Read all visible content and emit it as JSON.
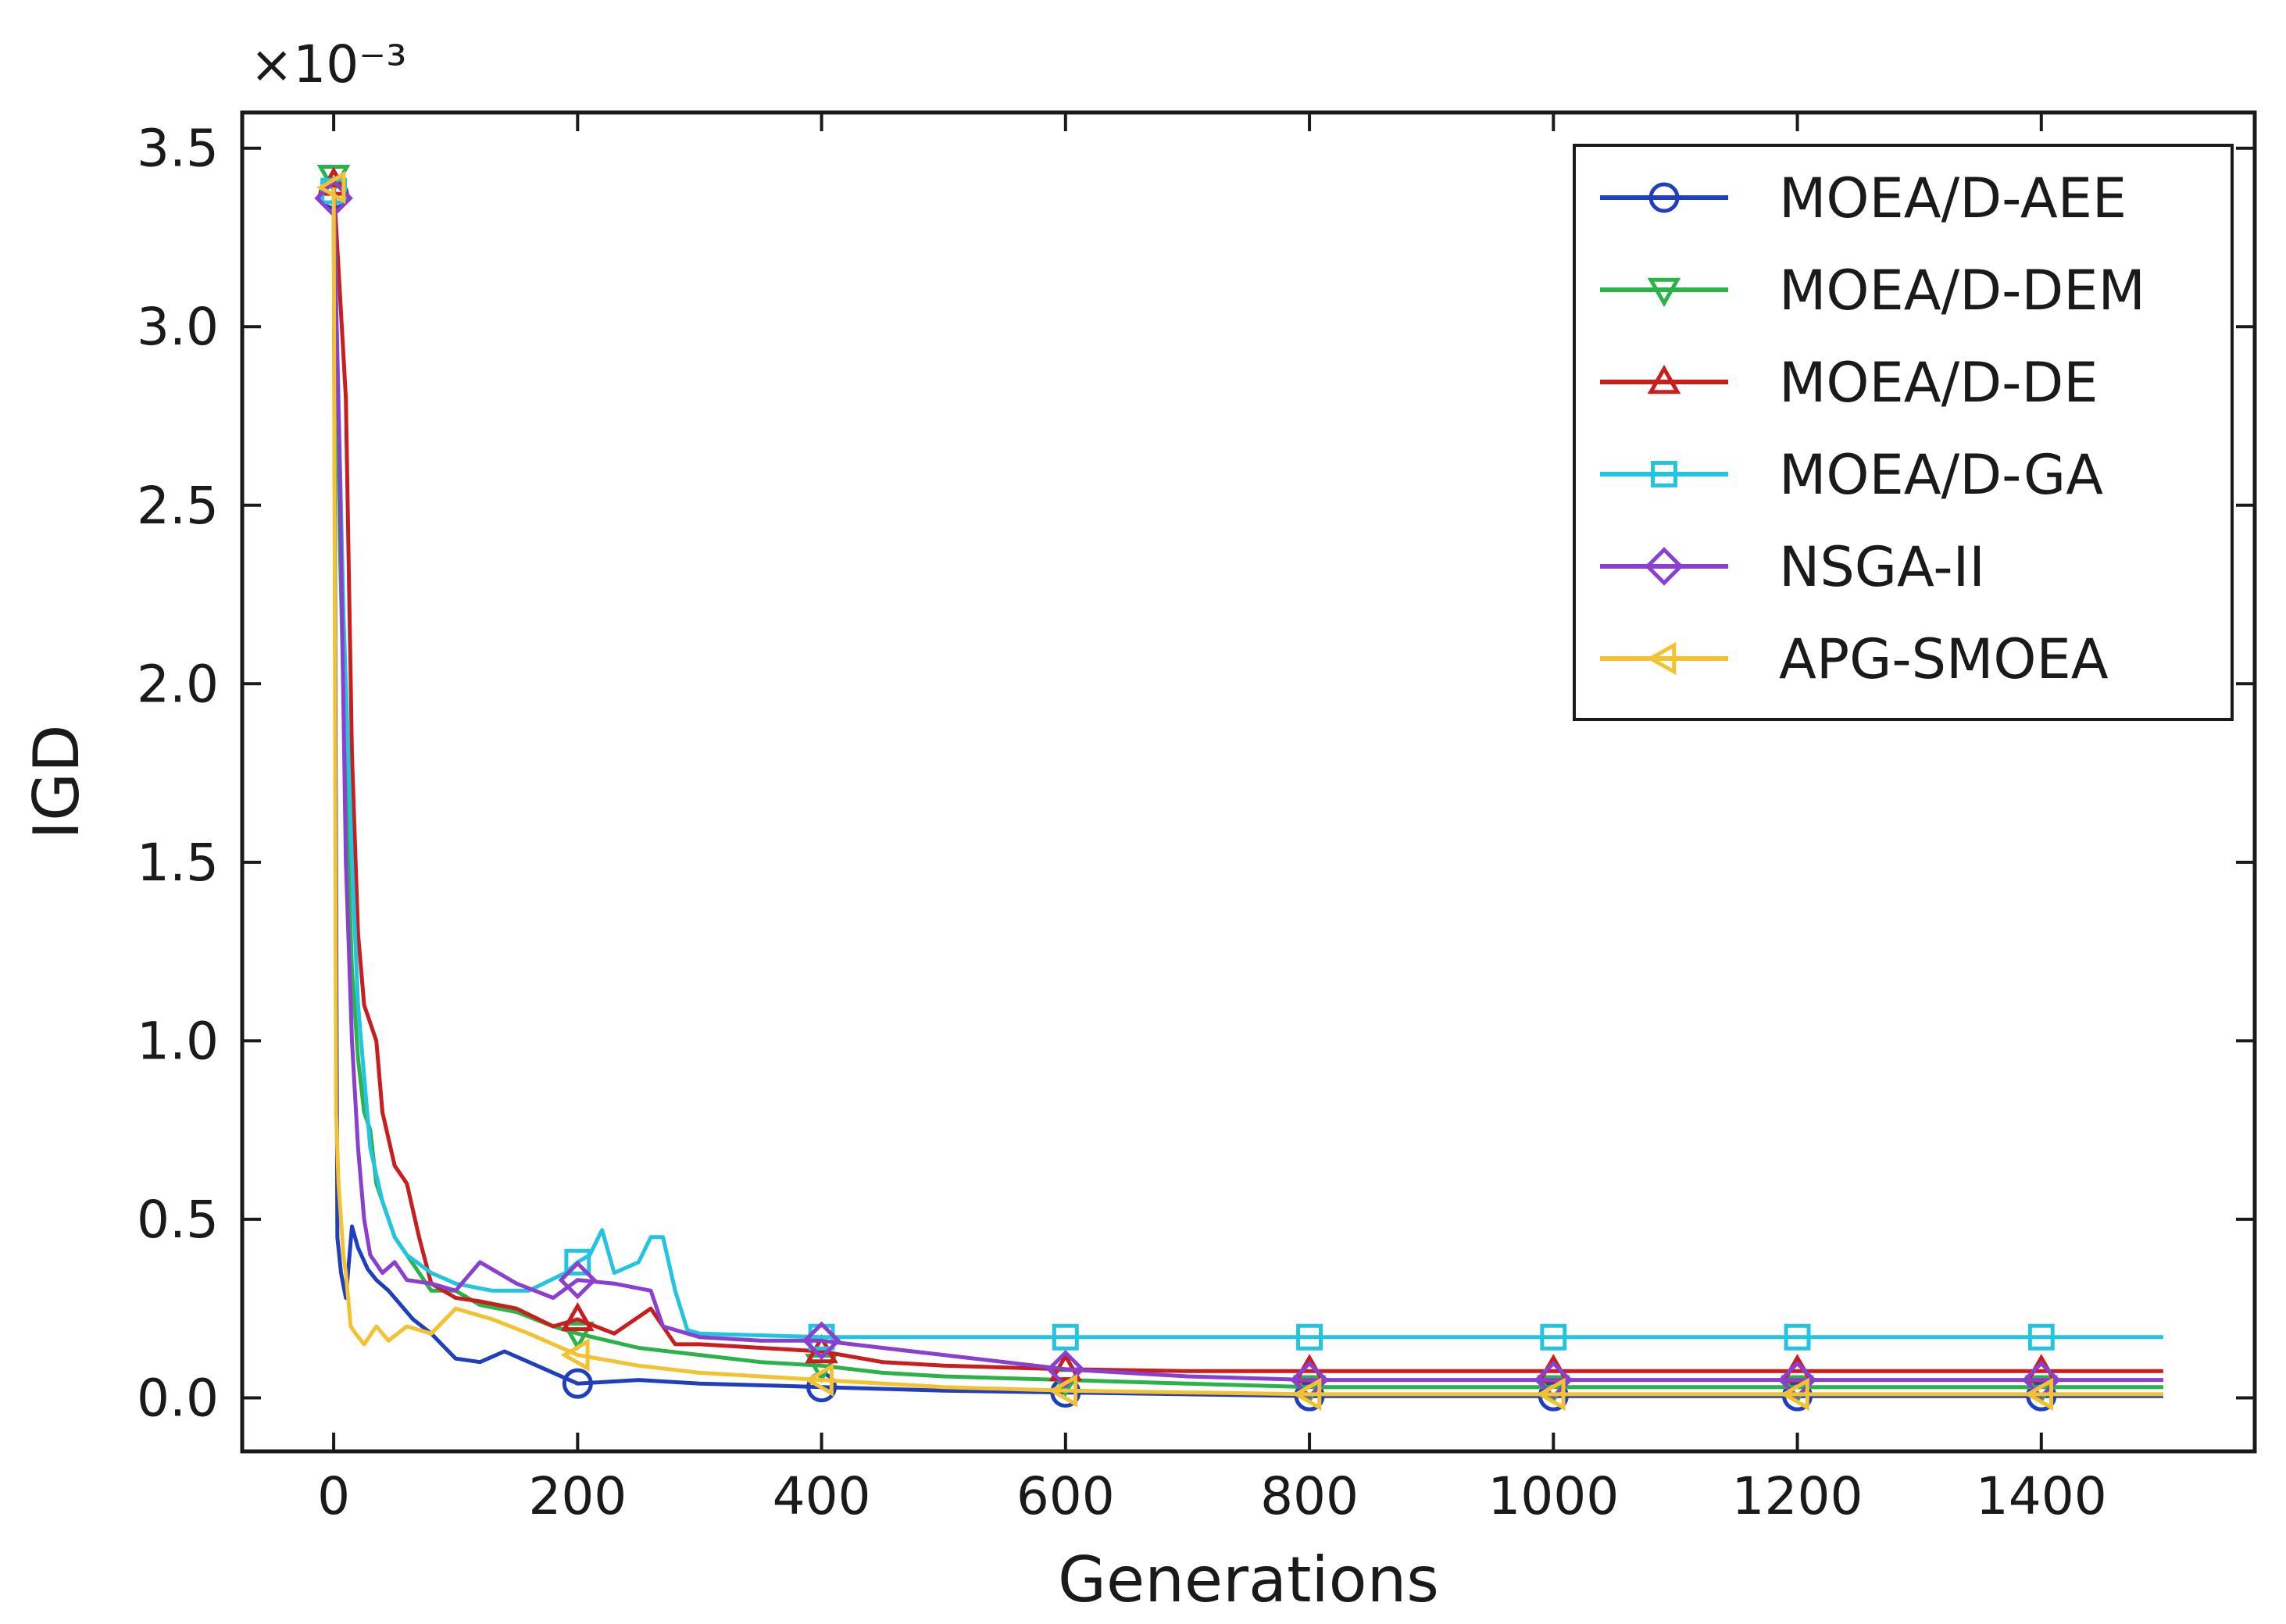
{
  "chart_data": {
    "type": "line",
    "title": "",
    "xlabel": "Generations",
    "ylabel": "IGD",
    "y_scale_label": "×10⁻³",
    "xlim": [
      -75,
      1575
    ],
    "ylim": [
      -0.15,
      3.6
    ],
    "xticks": [
      0,
      200,
      400,
      600,
      800,
      1000,
      1200,
      1400
    ],
    "xtick_labels": [
      "0",
      "200",
      "400",
      "600",
      "800",
      "1000",
      "1200",
      "1400"
    ],
    "yticks": [
      0.0,
      0.5,
      1.0,
      1.5,
      2.0,
      2.5,
      3.0,
      3.5
    ],
    "ytick_labels": [
      "0.0",
      "0.5",
      "1.0",
      "1.5",
      "2.0",
      "2.5",
      "3.0",
      "3.5"
    ],
    "legend_position": "top-right",
    "marker_x": [
      0,
      200,
      400,
      600,
      800,
      1000,
      1200,
      1400
    ],
    "series": [
      {
        "name": "MOEA/D-AEE",
        "color": "#1f3fbf",
        "marker": "circle",
        "x": [
          0,
          3,
          6,
          10,
          15,
          20,
          28,
          35,
          45,
          55,
          65,
          80,
          100,
          120,
          140,
          160,
          180,
          200,
          250,
          300,
          350,
          400,
          450,
          500,
          600,
          700,
          800,
          1000,
          1200,
          1400,
          1500
        ],
        "y": [
          3.37,
          0.45,
          0.35,
          0.28,
          0.48,
          0.42,
          0.36,
          0.33,
          0.3,
          0.26,
          0.22,
          0.18,
          0.11,
          0.1,
          0.13,
          0.1,
          0.07,
          0.04,
          0.05,
          0.04,
          0.035,
          0.03,
          0.025,
          0.02,
          0.015,
          0.01,
          0.005,
          0.005,
          0.005,
          0.005,
          0.005
        ]
      },
      {
        "name": "MOEA/D-DEM",
        "color": "#2bb34a",
        "marker": "triangle-down",
        "x": [
          0,
          5,
          10,
          15,
          20,
          25,
          30,
          35,
          40,
          50,
          60,
          70,
          80,
          100,
          120,
          150,
          180,
          200,
          250,
          300,
          350,
          400,
          450,
          500,
          600,
          700,
          800,
          1000,
          1200,
          1400,
          1500
        ],
        "y": [
          3.42,
          2.4,
          1.7,
          1.2,
          0.95,
          0.8,
          0.75,
          0.6,
          0.55,
          0.45,
          0.4,
          0.35,
          0.3,
          0.3,
          0.26,
          0.24,
          0.2,
          0.18,
          0.14,
          0.12,
          0.1,
          0.09,
          0.07,
          0.06,
          0.05,
          0.04,
          0.03,
          0.03,
          0.03,
          0.03,
          0.03
        ]
      },
      {
        "name": "MOEA/D-DE",
        "color": "#c81e1e",
        "marker": "triangle-up",
        "x": [
          0,
          5,
          10,
          15,
          20,
          25,
          30,
          35,
          40,
          50,
          60,
          70,
          80,
          100,
          120,
          150,
          180,
          200,
          230,
          260,
          280,
          300,
          350,
          400,
          450,
          500,
          600,
          700,
          800,
          1000,
          1200,
          1400,
          1500
        ],
        "y": [
          3.4,
          3.1,
          2.8,
          1.8,
          1.3,
          1.1,
          1.05,
          1.0,
          0.8,
          0.65,
          0.6,
          0.45,
          0.32,
          0.28,
          0.27,
          0.25,
          0.2,
          0.22,
          0.18,
          0.25,
          0.15,
          0.15,
          0.14,
          0.13,
          0.1,
          0.09,
          0.08,
          0.075,
          0.075,
          0.075,
          0.075,
          0.075,
          0.075
        ]
      },
      {
        "name": "MOEA/D-GA",
        "color": "#22c4e0",
        "marker": "square",
        "x": [
          0,
          8,
          15,
          20,
          25,
          30,
          40,
          50,
          60,
          80,
          100,
          130,
          160,
          190,
          200,
          210,
          220,
          230,
          250,
          260,
          270,
          280,
          290,
          300,
          350,
          400,
          450,
          500,
          600,
          700,
          800,
          1000,
          1200,
          1400,
          1500
        ],
        "y": [
          3.38,
          2.2,
          1.5,
          1.1,
          0.9,
          0.7,
          0.55,
          0.45,
          0.4,
          0.35,
          0.32,
          0.3,
          0.3,
          0.35,
          0.38,
          0.4,
          0.47,
          0.35,
          0.38,
          0.45,
          0.45,
          0.3,
          0.19,
          0.18,
          0.175,
          0.17,
          0.17,
          0.17,
          0.17,
          0.17,
          0.17,
          0.17,
          0.17,
          0.17,
          0.17
        ]
      },
      {
        "name": "NSGA-II",
        "color": "#8a3fcf",
        "marker": "diamond",
        "x": [
          0,
          5,
          10,
          15,
          20,
          25,
          30,
          40,
          50,
          60,
          80,
          100,
          120,
          150,
          180,
          200,
          230,
          260,
          270,
          300,
          350,
          400,
          450,
          500,
          550,
          600,
          700,
          800,
          1000,
          1200,
          1400,
          1500
        ],
        "y": [
          3.36,
          2.6,
          1.5,
          1.0,
          0.7,
          0.5,
          0.4,
          0.35,
          0.38,
          0.33,
          0.32,
          0.3,
          0.38,
          0.32,
          0.28,
          0.33,
          0.32,
          0.3,
          0.2,
          0.17,
          0.16,
          0.16,
          0.14,
          0.12,
          0.1,
          0.08,
          0.06,
          0.05,
          0.05,
          0.05,
          0.05,
          0.05
        ]
      },
      {
        "name": "APG-SMOEA",
        "color": "#f2c230",
        "marker": "triangle-left",
        "x": [
          0,
          2,
          4,
          6,
          8,
          10,
          14,
          18,
          25,
          35,
          45,
          60,
          80,
          100,
          130,
          160,
          200,
          250,
          300,
          350,
          400,
          500,
          600,
          700,
          800,
          1000,
          1200,
          1400,
          1500
        ],
        "y": [
          3.39,
          0.8,
          0.6,
          0.5,
          0.4,
          0.35,
          0.2,
          0.18,
          0.15,
          0.2,
          0.16,
          0.2,
          0.18,
          0.25,
          0.22,
          0.18,
          0.12,
          0.09,
          0.07,
          0.06,
          0.05,
          0.03,
          0.02,
          0.015,
          0.01,
          0.01,
          0.01,
          0.01,
          0.01
        ]
      }
    ]
  }
}
